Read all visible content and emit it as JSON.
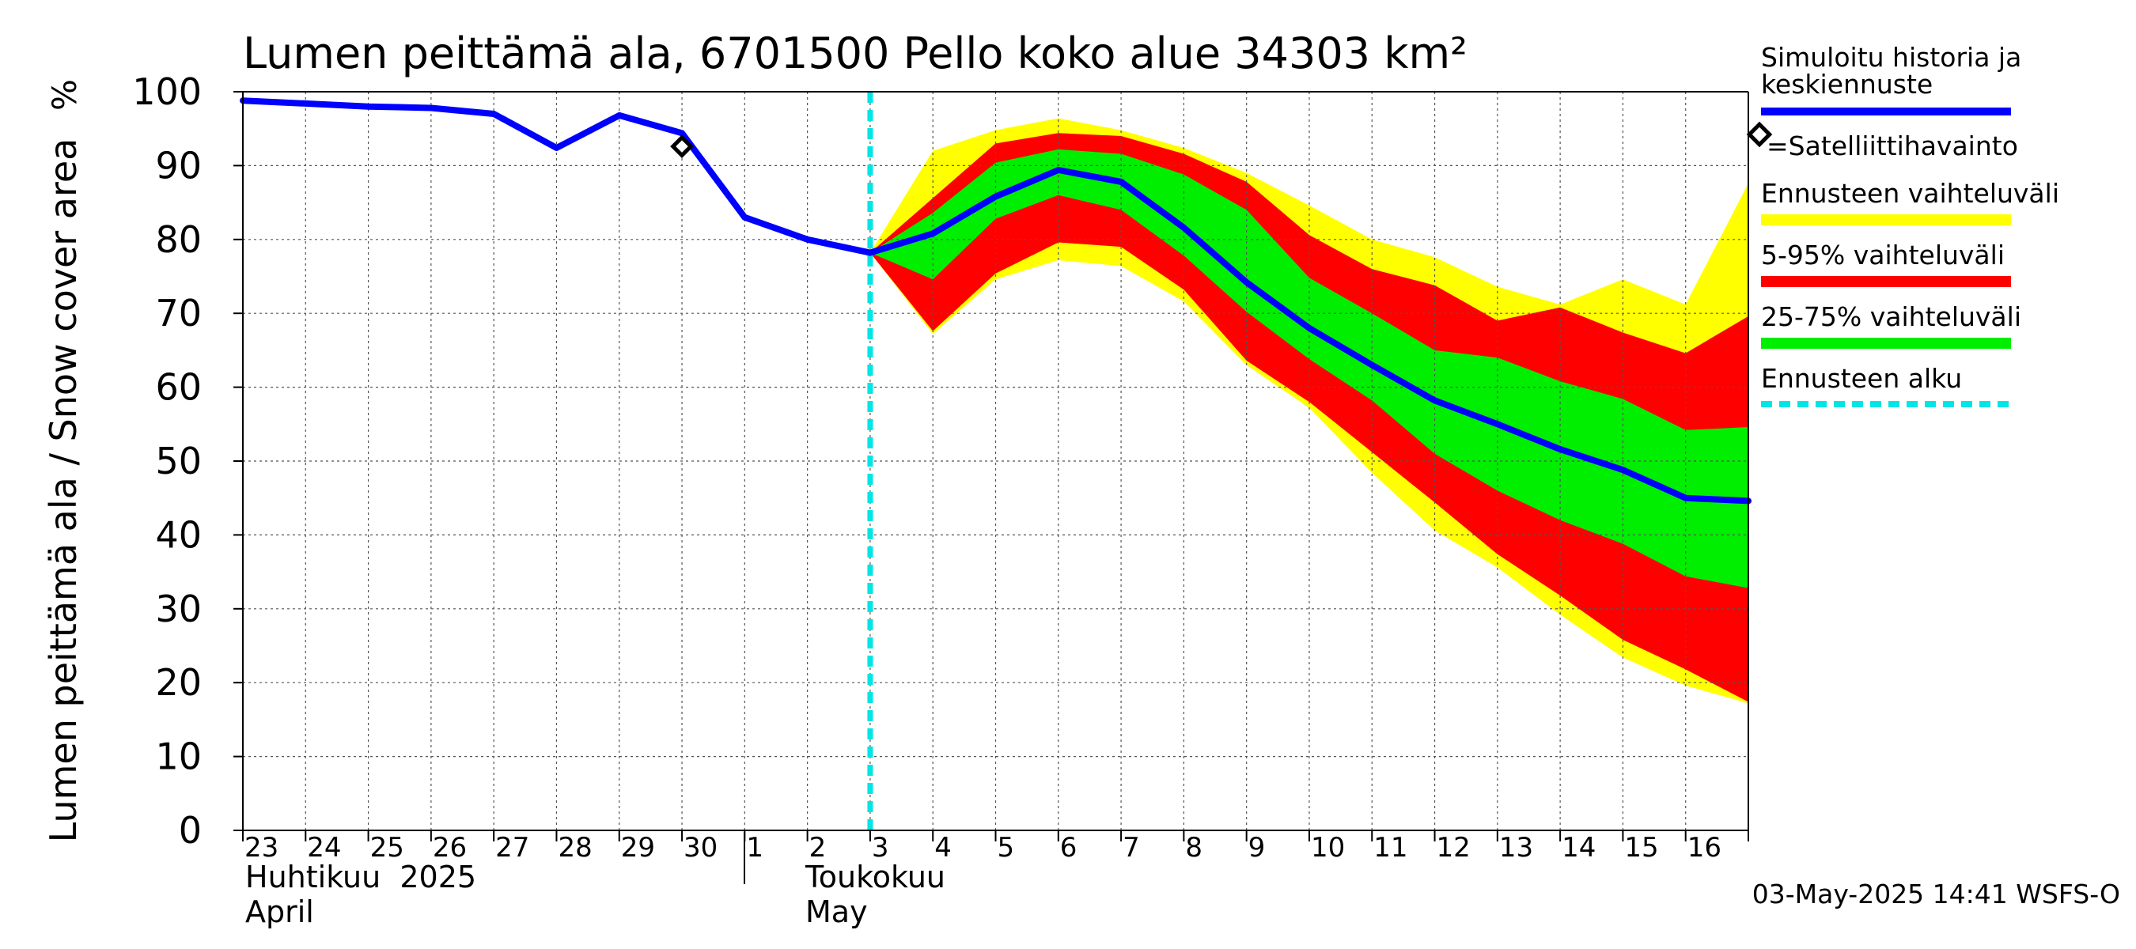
{
  "chart_data": {
    "type": "area",
    "title": "Lumen peittämä ala, 6701500 Pello koko alue 34303 km²",
    "ylabel": "Lumen peittämä ala / Snow cover area",
    "yunit": "%",
    "ylim": [
      0,
      100
    ],
    "yticks": [
      0,
      10,
      20,
      30,
      40,
      50,
      60,
      70,
      80,
      90,
      100
    ],
    "grid": true,
    "legend_position": "right",
    "x_tick_labels": [
      "23",
      "24",
      "25",
      "26",
      "27",
      "28",
      "29",
      "30",
      "1",
      "2",
      "3",
      "4",
      "5",
      "6",
      "7",
      "8",
      "9",
      "10",
      "11",
      "12",
      "13",
      "14",
      "15",
      "16"
    ],
    "x_month_labels": [
      {
        "line1": "Huhtikuu  2025",
        "line2": "April"
      },
      {
        "line1": "Toukokuu",
        "line2": "May"
      }
    ],
    "x": [
      "2025-04-23",
      "2025-04-24",
      "2025-04-25",
      "2025-04-26",
      "2025-04-27",
      "2025-04-28",
      "2025-04-29",
      "2025-04-30",
      "2025-05-01",
      "2025-05-02",
      "2025-05-03",
      "2025-05-04",
      "2025-05-05",
      "2025-05-06",
      "2025-05-07",
      "2025-05-08",
      "2025-05-09",
      "2025-05-10",
      "2025-05-11",
      "2025-05-12",
      "2025-05-13",
      "2025-05-14",
      "2025-05-15",
      "2025-05-16",
      "2025-05-17"
    ],
    "forecast_start": "2025-05-03",
    "series": [
      {
        "name": "Simuloitu historia ja keskiennuste",
        "color": "#0000ff",
        "values": [
          98.8,
          98.4,
          98.0,
          97.8,
          97.0,
          92.4,
          96.8,
          94.4,
          83.0,
          80.0,
          78.2,
          80.8,
          85.8,
          89.4,
          87.8,
          81.6,
          74.2,
          68.0,
          63.0,
          58.2,
          55.0,
          51.6,
          48.8,
          45.0,
          44.6
        ]
      },
      {
        "name": "Ennusteen vaihteluväli",
        "color": "#ffff00",
        "x": [
          "2025-05-03",
          "2025-05-04",
          "2025-05-05",
          "2025-05-06",
          "2025-05-07",
          "2025-05-08",
          "2025-05-09",
          "2025-05-10",
          "2025-05-11",
          "2025-05-12",
          "2025-05-13",
          "2025-05-14",
          "2025-05-15",
          "2025-05-16",
          "2025-05-17"
        ],
        "upper": [
          78.2,
          92.0,
          94.8,
          96.4,
          94.8,
          92.4,
          89.0,
          84.6,
          80.0,
          77.6,
          73.6,
          71.2,
          74.6,
          71.2,
          87.6
        ],
        "lower": [
          78.2,
          67.2,
          74.6,
          77.2,
          76.4,
          71.6,
          63.0,
          57.2,
          48.4,
          40.6,
          35.6,
          29.2,
          23.4,
          19.6,
          17.2
        ]
      },
      {
        "name": "5-95% vaihteluväli",
        "color": "#ff0000",
        "x": [
          "2025-05-03",
          "2025-05-04",
          "2025-05-05",
          "2025-05-06",
          "2025-05-07",
          "2025-05-08",
          "2025-05-09",
          "2025-05-10",
          "2025-05-11",
          "2025-05-12",
          "2025-05-13",
          "2025-05-14",
          "2025-05-15",
          "2025-05-16",
          "2025-05-17"
        ],
        "upper": [
          78.2,
          85.6,
          93.0,
          94.4,
          94.0,
          91.6,
          87.8,
          80.6,
          76.0,
          73.8,
          69.0,
          70.8,
          67.4,
          64.6,
          69.6
        ],
        "lower": [
          78.2,
          67.6,
          75.4,
          79.6,
          79.0,
          73.2,
          63.6,
          58.0,
          51.2,
          44.4,
          37.4,
          31.8,
          25.8,
          21.8,
          17.4
        ]
      },
      {
        "name": "25-75% vaihteluväli",
        "color": "#00ee00",
        "x": [
          "2025-05-03",
          "2025-05-04",
          "2025-05-05",
          "2025-05-06",
          "2025-05-07",
          "2025-05-08",
          "2025-05-09",
          "2025-05-10",
          "2025-05-11",
          "2025-05-12",
          "2025-05-13",
          "2025-05-14",
          "2025-05-15",
          "2025-05-16",
          "2025-05-17"
        ],
        "upper": [
          78.2,
          83.6,
          90.4,
          92.2,
          91.6,
          88.8,
          84.0,
          74.8,
          70.0,
          65.0,
          64.0,
          60.8,
          58.4,
          54.2,
          54.6
        ],
        "lower": [
          78.2,
          74.6,
          82.8,
          86.0,
          84.0,
          77.8,
          70.2,
          63.8,
          58.2,
          51.0,
          46.0,
          42.0,
          38.8,
          34.4,
          32.8
        ]
      }
    ],
    "satellite_observation": {
      "name": "=Satelliittihavainto",
      "x": "2025-04-30",
      "y": 92.6
    },
    "forecast_start_label": "Ennusteen alku",
    "forecast_start_color": "#00e5e5",
    "timestamp": "03-May-2025 14:41 WSFS-O"
  }
}
